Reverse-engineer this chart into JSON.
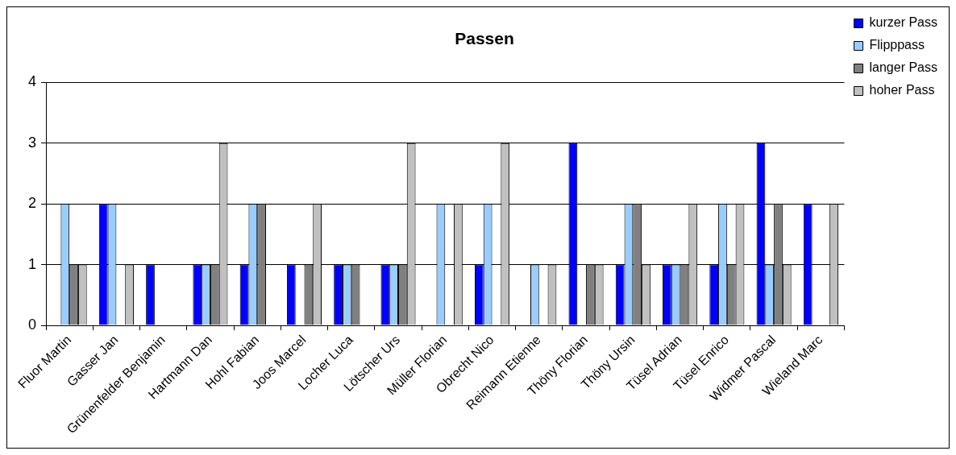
{
  "chart_data": {
    "type": "bar",
    "title": "Passen",
    "categories": [
      "Fluor Martin",
      "Gasser Jan",
      "Grünenfelder Benjamin",
      "Hartmann Dan",
      "Hohl Fabian",
      "Joos Marcel",
      "Locher Luca",
      "Lötscher Urs",
      "Müller Florian",
      "Obrecht Nico",
      "Reimann Etienne",
      "Thöny Florian",
      "Thöny Ursin",
      "Tüsel Adrian",
      "Tüsel Enrico",
      "Widmer Pascal",
      "Wieland Marc"
    ],
    "series": [
      {
        "name": "kurzer Pass",
        "color": "#0000ff",
        "values": [
          0,
          2,
          1,
          1,
          1,
          1,
          1,
          1,
          0,
          1,
          0,
          3,
          1,
          1,
          1,
          3,
          2
        ]
      },
      {
        "name": "Flipppass",
        "color": "#99ccff",
        "values": [
          2,
          2,
          0,
          1,
          2,
          0,
          1,
          1,
          2,
          2,
          1,
          0,
          2,
          1,
          2,
          1,
          0
        ]
      },
      {
        "name": "langer Pass",
        "color": "#808080",
        "values": [
          1,
          0,
          0,
          1,
          2,
          1,
          1,
          1,
          0,
          0,
          0,
          1,
          2,
          1,
          1,
          2,
          0
        ]
      },
      {
        "name": "hoher Pass",
        "color": "#c0c0c0",
        "values": [
          1,
          1,
          0,
          3,
          0,
          2,
          0,
          3,
          2,
          3,
          1,
          1,
          1,
          2,
          2,
          1,
          2
        ]
      }
    ],
    "ylim": [
      0,
      4
    ],
    "yticks": [
      0,
      1,
      2,
      3,
      4
    ],
    "grid": "y",
    "legend": "right"
  }
}
